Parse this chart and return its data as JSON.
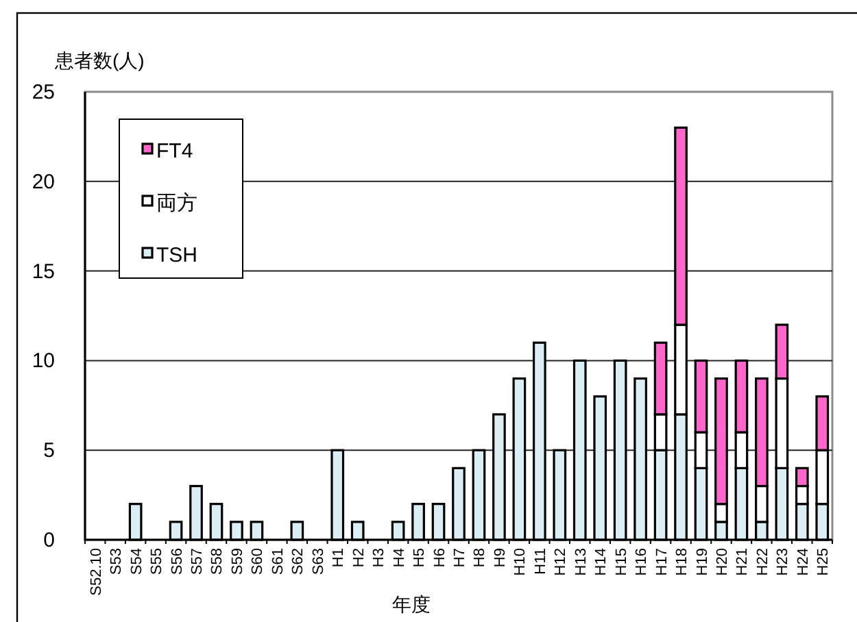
{
  "chart_data": {
    "type": "bar",
    "stacked": true,
    "ylabel": "患者数(人)",
    "xlabel": "年度",
    "categories": [
      "S52.10",
      "S53",
      "S54",
      "S55",
      "S56",
      "S57",
      "S58",
      "S59",
      "S60",
      "S61",
      "S62",
      "S63",
      "H1",
      "H2",
      "H3",
      "H4",
      "H5",
      "H6",
      "H7",
      "H8",
      "H9",
      "H10",
      "H11",
      "H12",
      "H13",
      "H14",
      "H15",
      "H16",
      "H17",
      "H18",
      "H19",
      "H20",
      "H21",
      "H22",
      "H23",
      "H24",
      "H25"
    ],
    "series": [
      {
        "name": "TSH",
        "color": "#dbeef4",
        "values": [
          0,
          0,
          2,
          0,
          1,
          3,
          2,
          1,
          1,
          0,
          1,
          0,
          5,
          1,
          0,
          1,
          2,
          2,
          4,
          5,
          7,
          9,
          11,
          5,
          10,
          8,
          10,
          9,
          5,
          7,
          4,
          1,
          4,
          1,
          4,
          2,
          2
        ]
      },
      {
        "name": "両方",
        "color": "#ffffff",
        "values": [
          0,
          0,
          0,
          0,
          0,
          0,
          0,
          0,
          0,
          0,
          0,
          0,
          0,
          0,
          0,
          0,
          0,
          0,
          0,
          0,
          0,
          0,
          0,
          0,
          0,
          0,
          0,
          0,
          2,
          5,
          2,
          1,
          2,
          2,
          5,
          1,
          3
        ]
      },
      {
        "name": "FT4",
        "color": "#ff66cc",
        "values": [
          0,
          0,
          0,
          0,
          0,
          0,
          0,
          0,
          0,
          0,
          0,
          0,
          0,
          0,
          0,
          0,
          0,
          0,
          0,
          0,
          0,
          0,
          0,
          0,
          0,
          0,
          0,
          0,
          4,
          11,
          4,
          7,
          4,
          6,
          3,
          1,
          3
        ]
      }
    ],
    "ylim": [
      0,
      25
    ],
    "yticks": [
      0,
      5,
      10,
      15,
      20,
      25
    ],
    "grid": "y",
    "legend": "top left"
  }
}
